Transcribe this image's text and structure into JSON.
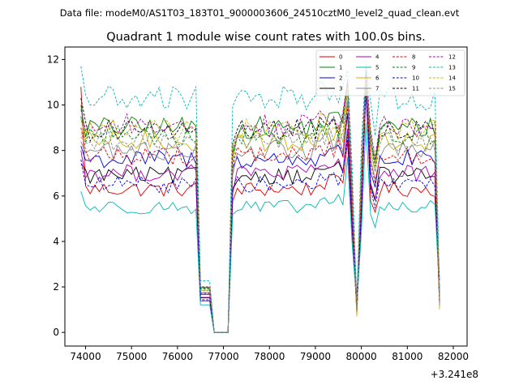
{
  "figure": {
    "suptitle": "Data file: modeM0/AS1T03_183T01_9000003606_24510cztM0_level2_quad_clean.evt",
    "title": "Quadrant 1 module wise count rates with 100.0s bins.",
    "offset_label": "+3.241e8"
  },
  "chart_data": {
    "type": "line",
    "x_offset": 324100000,
    "xlim": [
      73550,
      82300
    ],
    "ylim": [
      -0.6,
      12.55
    ],
    "xticks": [
      74000,
      75000,
      76000,
      77000,
      78000,
      79000,
      80000,
      81000,
      82000
    ],
    "yticks": [
      0,
      2,
      4,
      6,
      8,
      10,
      12
    ],
    "x_range": [
      73900,
      81700
    ],
    "x_step": 100,
    "segments": {
      "start": 73900,
      "drop_to_zero": [
        76500,
        76800
      ],
      "gap_zero_until": 77100,
      "resume": 77200,
      "dip1": [
        79700,
        80000
      ],
      "dip2": [
        80300,
        80400
      ],
      "end_dip": 81700
    },
    "legend_placement": "upper right",
    "series": [
      {
        "name": "0",
        "color": "#e00000",
        "dash": "solid",
        "level": 6.3,
        "start": 10.8
      },
      {
        "name": "1",
        "color": "#008000",
        "dash": "solid",
        "level": 9.0,
        "start": 10.0
      },
      {
        "name": "2",
        "color": "#0000e0",
        "dash": "solid",
        "level": 7.6,
        "start": 8.2
      },
      {
        "name": "3",
        "color": "#000000",
        "dash": "solid",
        "level": 6.9,
        "start": 7.4
      },
      {
        "name": "4",
        "color": "#b000b0",
        "dash": "solid",
        "level": 7.0,
        "start": 8.0
      },
      {
        "name": "5",
        "color": "#00b8b8",
        "dash": "solid",
        "level": 5.5,
        "start": 6.2
      },
      {
        "name": "6",
        "color": "#c8b400",
        "dash": "solid",
        "level": 8.4,
        "start": 8.7
      },
      {
        "name": "7",
        "color": "#888888",
        "dash": "solid",
        "level": 8.0,
        "start": 8.4
      },
      {
        "name": "8",
        "color": "#e00000",
        "dash": "dashed",
        "level": 7.8,
        "start": 9.0
      },
      {
        "name": "9",
        "color": "#008000",
        "dash": "dashed",
        "level": 8.7,
        "start": 9.5
      },
      {
        "name": "10",
        "color": "#0000e0",
        "dash": "dashed",
        "level": 6.5,
        "start": 7.6
      },
      {
        "name": "11",
        "color": "#000000",
        "dash": "dashed",
        "level": 8.9,
        "start": 10.3
      },
      {
        "name": "12",
        "color": "#b000b0",
        "dash": "dashed",
        "level": 9.1,
        "start": 9.8
      },
      {
        "name": "13",
        "color": "#00b8b8",
        "dash": "dashed",
        "level": 10.3,
        "start": 11.7
      },
      {
        "name": "14",
        "color": "#c8b400",
        "dash": "dashed",
        "level": 8.9,
        "start": 9.4
      },
      {
        "name": "15",
        "color": "#888888",
        "dash": "dashed",
        "level": 8.4,
        "start": 8.6
      }
    ],
    "grid": false
  }
}
